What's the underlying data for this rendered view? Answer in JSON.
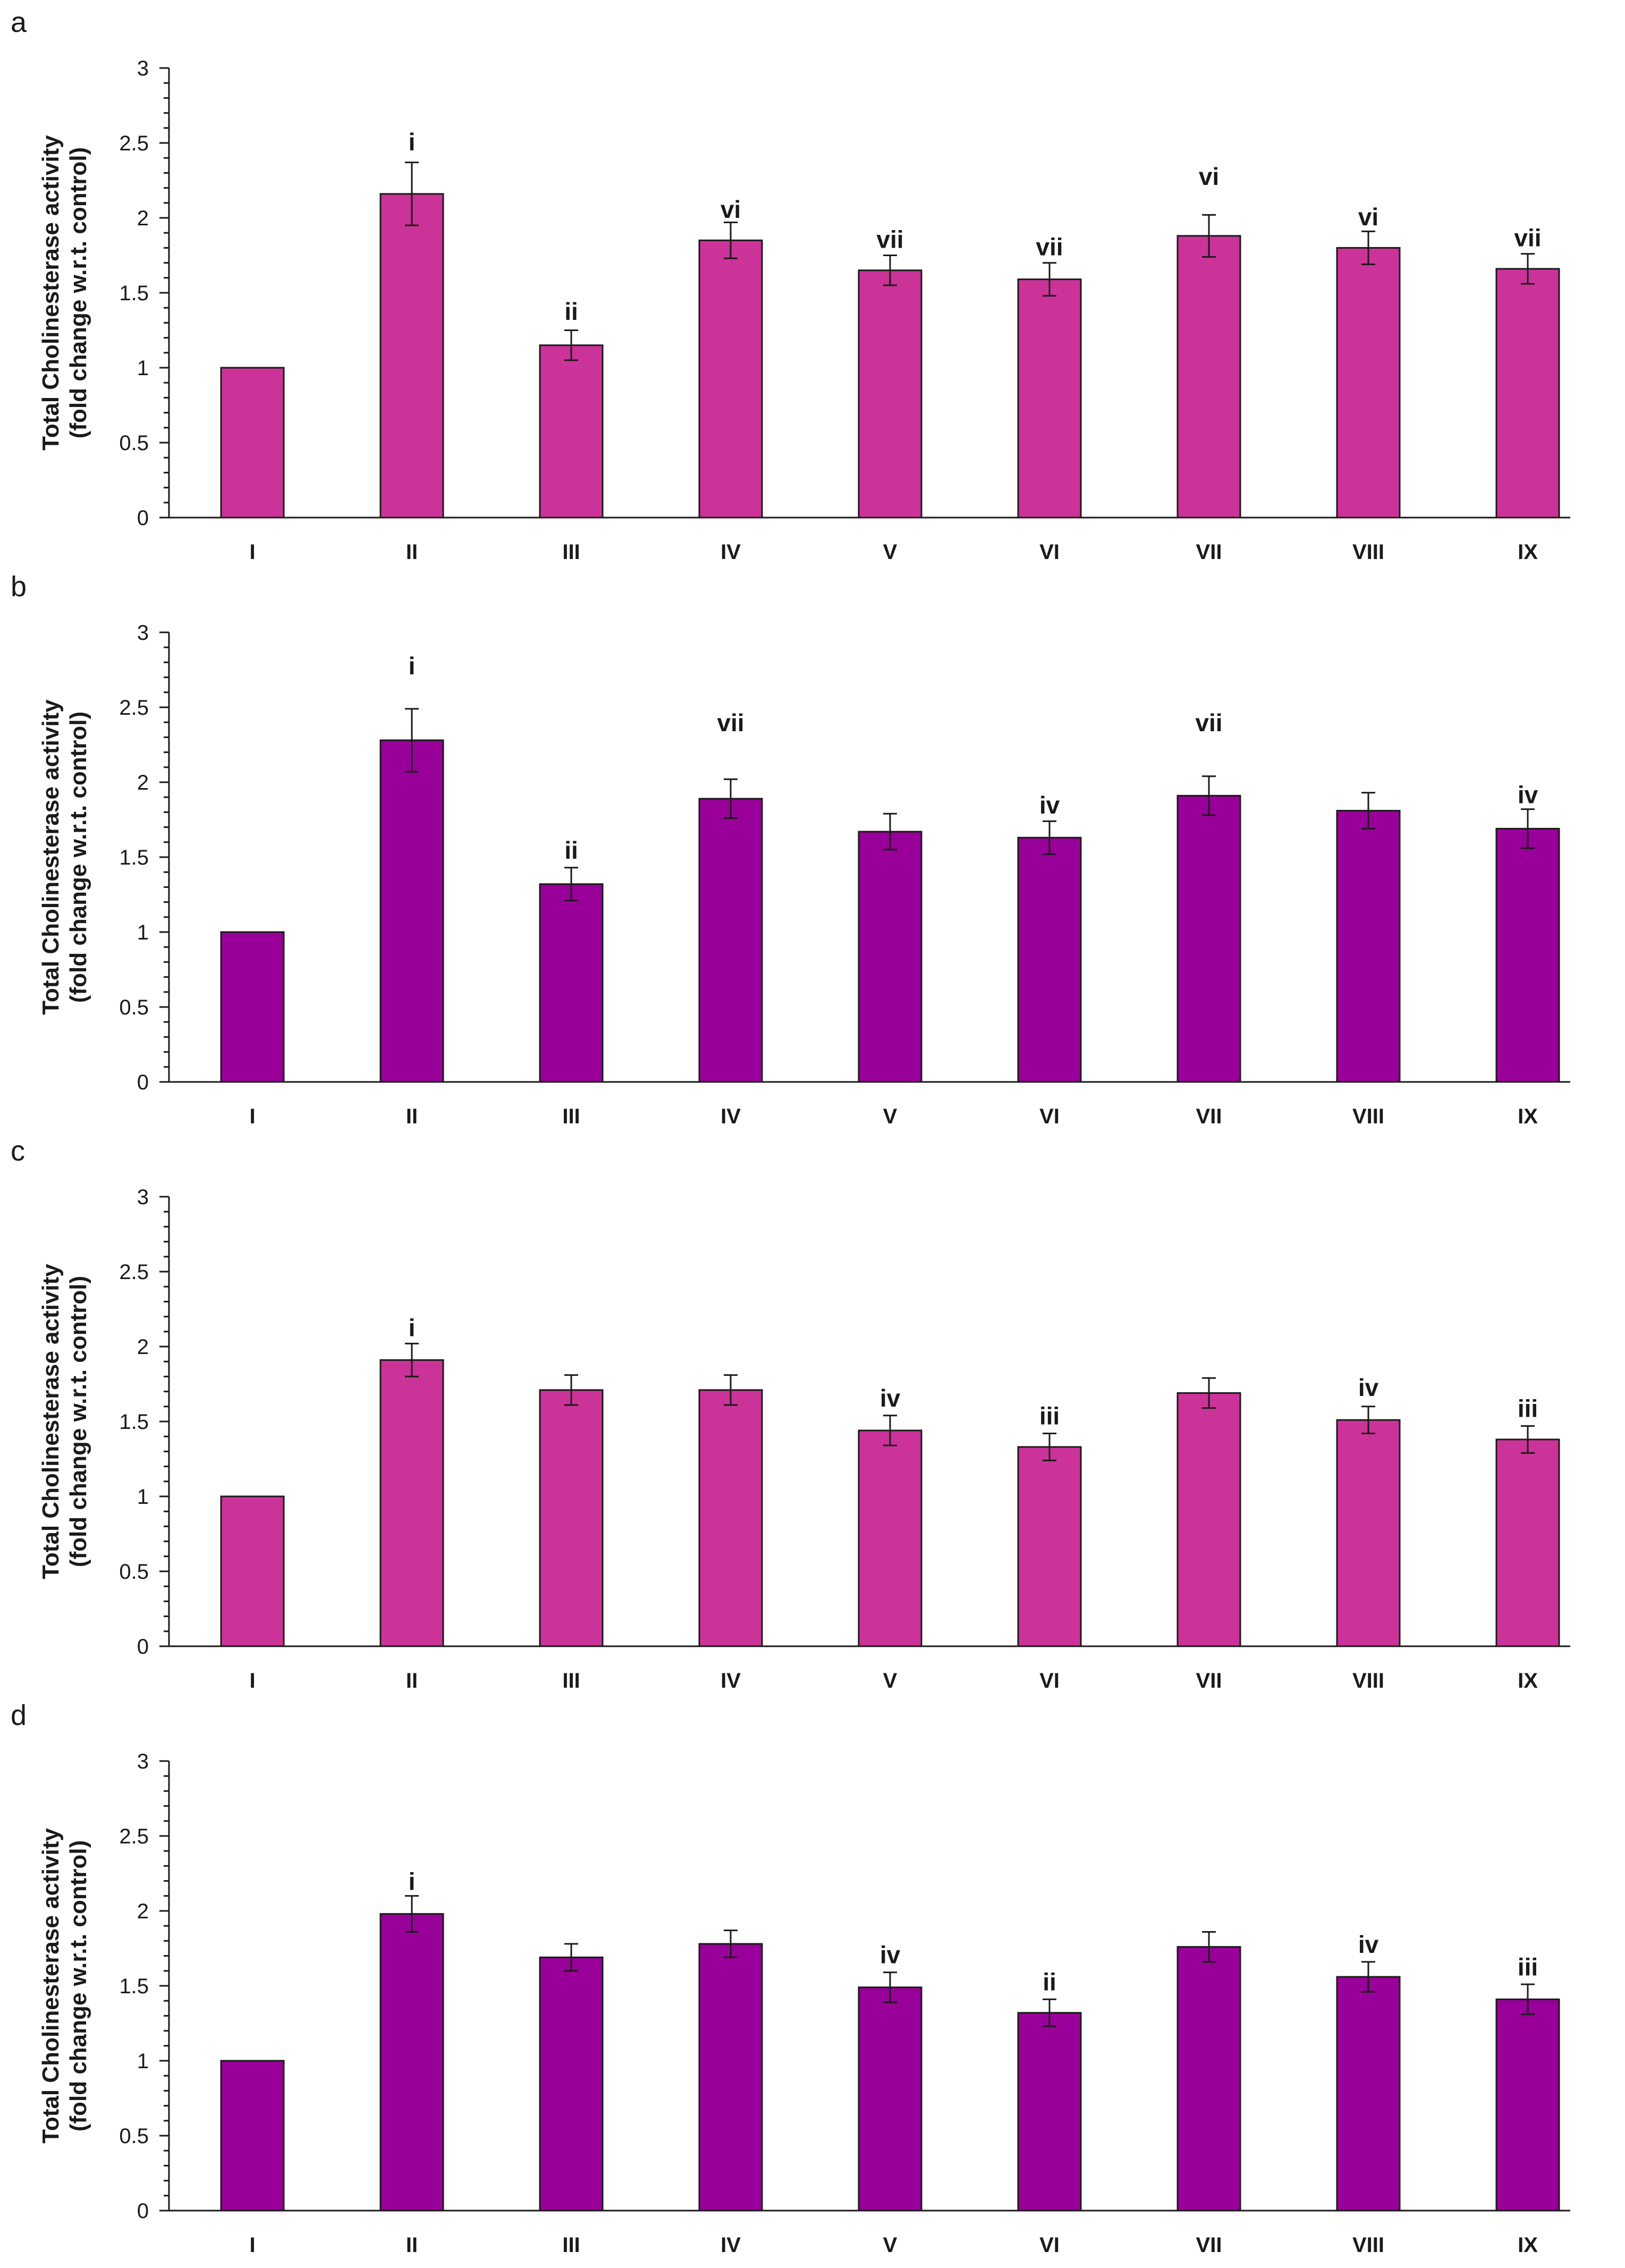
{
  "shared": {
    "categories": [
      "I",
      "II",
      "III",
      "IV",
      "V",
      "VI",
      "VII",
      "VIII",
      "IX"
    ],
    "ylabel_line1": "Total Cholinesterase activity",
    "ylabel_line2": "(fold change w.r.t. control)",
    "yticks": [
      "0",
      "0.5",
      "1",
      "1.5",
      "2",
      "2.5",
      "3"
    ]
  },
  "chart_data": [
    {
      "panel": "a",
      "type": "bar",
      "color": "#cc3399",
      "categories": [
        "I",
        "II",
        "III",
        "IV",
        "V",
        "VI",
        "VII",
        "VIII",
        "IX"
      ],
      "values": [
        1.0,
        2.16,
        1.15,
        1.85,
        1.65,
        1.59,
        1.88,
        1.8,
        1.66
      ],
      "errors": [
        0,
        0.21,
        0.1,
        0.12,
        0.1,
        0.11,
        0.14,
        0.11,
        0.1
      ],
      "annotations": [
        "",
        "i",
        "ii",
        "vi",
        "vii",
        "vii",
        "vi",
        "vi",
        "vii"
      ],
      "annotation_y": [
        null,
        2.45,
        1.32,
        2.0,
        1.8,
        1.75,
        2.22,
        1.95,
        1.81
      ],
      "ylabel": "Total Cholinesterase activity (fold change w.r.t. control)",
      "ylim": [
        0,
        3
      ]
    },
    {
      "panel": "b",
      "type": "bar",
      "color": "#990099",
      "categories": [
        "I",
        "II",
        "III",
        "IV",
        "V",
        "VI",
        "VII",
        "VIII",
        "IX"
      ],
      "values": [
        1.0,
        2.28,
        1.32,
        1.89,
        1.67,
        1.63,
        1.91,
        1.81,
        1.69
      ],
      "errors": [
        0,
        0.21,
        0.11,
        0.13,
        0.12,
        0.11,
        0.13,
        0.12,
        0.13
      ],
      "annotations": [
        "",
        "i",
        "ii",
        "vii",
        "",
        "iv",
        "vii",
        "",
        "iv"
      ],
      "annotation_y": [
        null,
        2.72,
        1.49,
        2.34,
        null,
        1.79,
        2.34,
        null,
        1.86
      ],
      "ylabel": "Total Cholinesterase activity (fold change w.r.t. control)",
      "ylim": [
        0,
        3
      ]
    },
    {
      "panel": "c",
      "type": "bar",
      "color": "#cc3399",
      "categories": [
        "I",
        "II",
        "III",
        "IV",
        "V",
        "VI",
        "VII",
        "VIII",
        "IX"
      ],
      "values": [
        1.0,
        1.91,
        1.71,
        1.71,
        1.44,
        1.33,
        1.69,
        1.51,
        1.38
      ],
      "errors": [
        0,
        0.11,
        0.1,
        0.1,
        0.1,
        0.09,
        0.1,
        0.09,
        0.09
      ],
      "annotations": [
        "",
        "i",
        "",
        "",
        "iv",
        "iii",
        "",
        "iv",
        "iii"
      ],
      "annotation_y": [
        null,
        2.07,
        null,
        null,
        1.6,
        1.48,
        null,
        1.67,
        1.53
      ],
      "ylabel": "Total Cholinesterase activity (fold change w.r.t. control)",
      "ylim": [
        0,
        3
      ]
    },
    {
      "panel": "d",
      "type": "bar",
      "color": "#990099",
      "categories": [
        "I",
        "II",
        "III",
        "IV",
        "V",
        "VI",
        "VII",
        "VIII",
        "IX"
      ],
      "values": [
        1.0,
        1.98,
        1.69,
        1.78,
        1.49,
        1.32,
        1.76,
        1.56,
        1.41
      ],
      "errors": [
        0,
        0.12,
        0.09,
        0.09,
        0.1,
        0.09,
        0.1,
        0.1,
        0.1
      ],
      "annotations": [
        "",
        "i",
        "",
        "",
        "iv",
        "ii",
        "",
        "iv",
        "iii"
      ],
      "annotation_y": [
        null,
        2.14,
        null,
        null,
        1.65,
        1.47,
        null,
        1.72,
        1.57
      ],
      "ylabel": "Total Cholinesterase activity (fold change w.r.t. control)",
      "ylim": [
        0,
        3
      ]
    }
  ]
}
